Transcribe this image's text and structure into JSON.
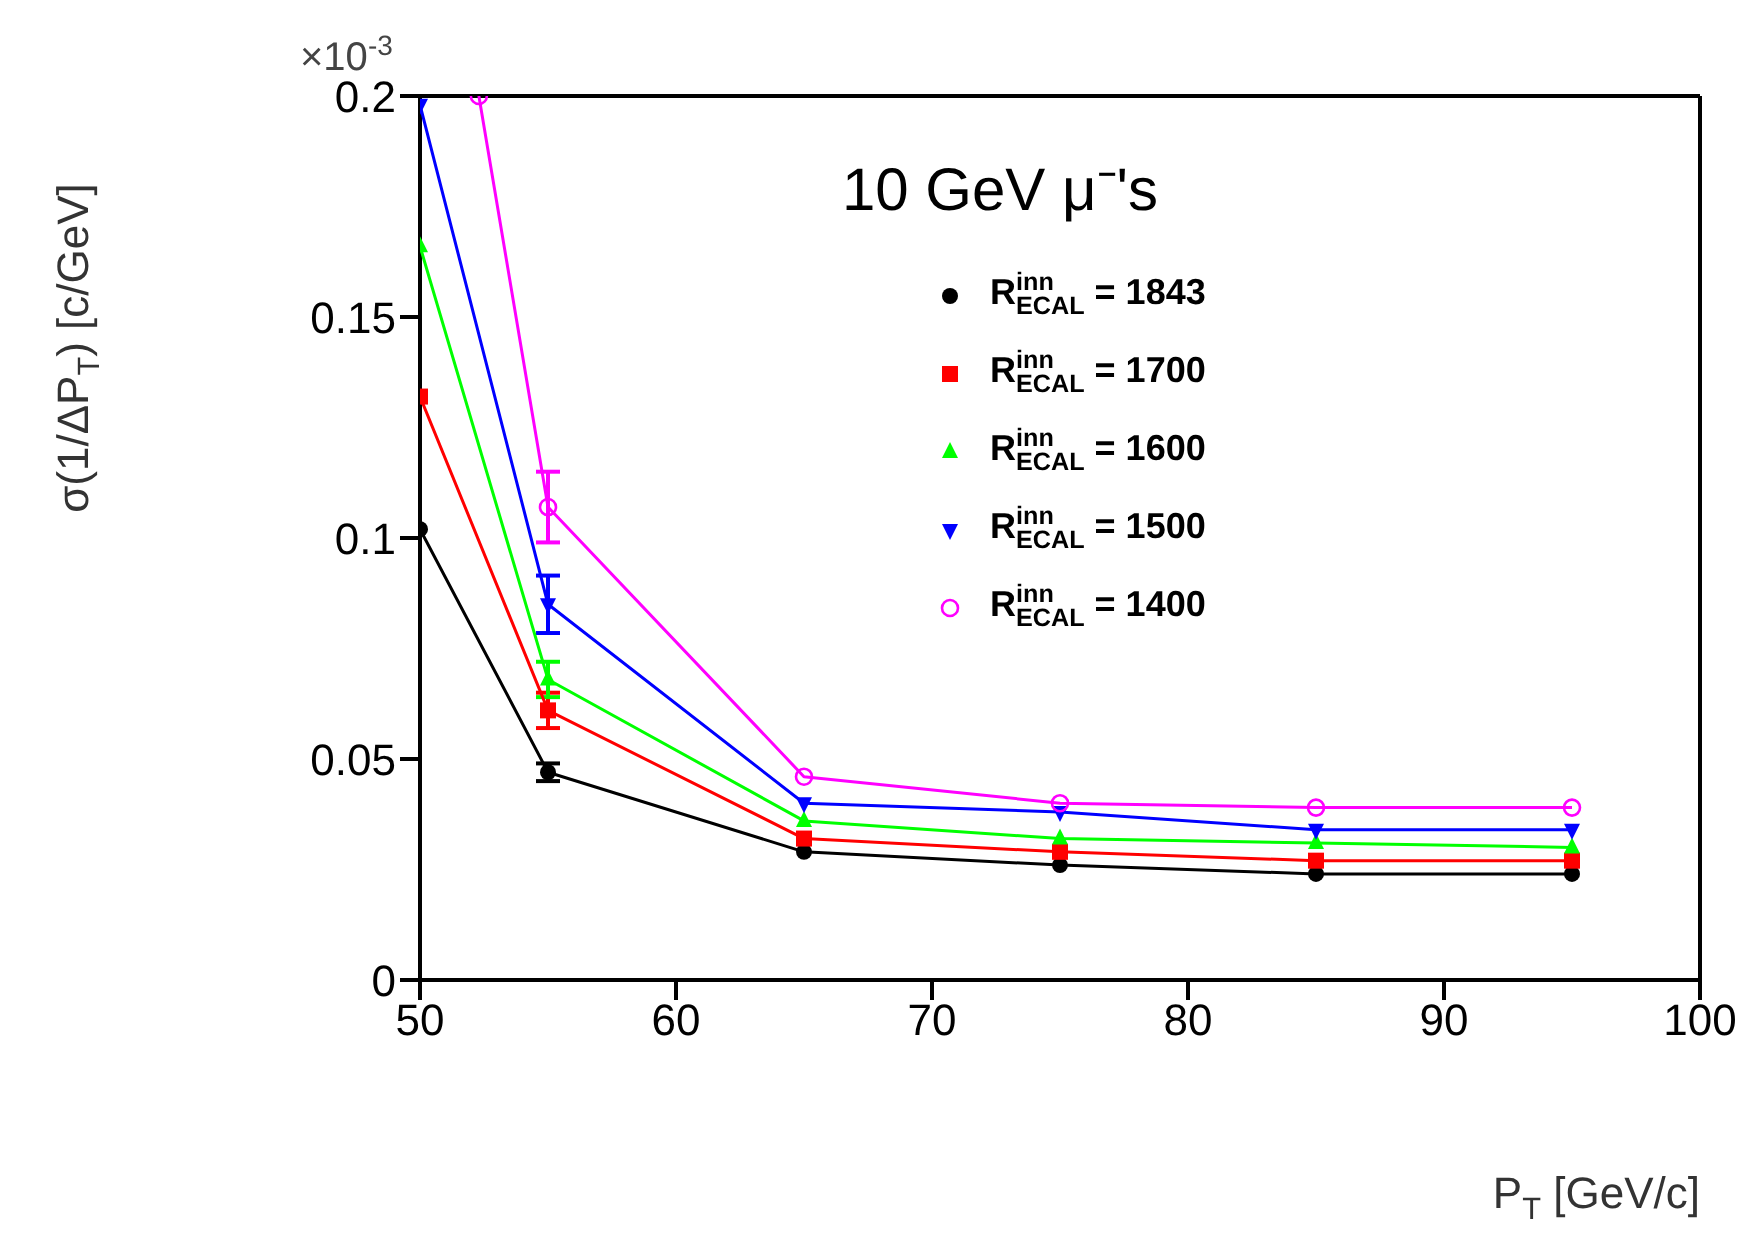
{
  "chart_data": {
    "type": "line",
    "title": "10 GeV μ⁻'s",
    "xlabel": "P$_{T}$ [GeV/c]",
    "ylabel": "σ(1/ΔP$_{T}$) [c/GeV]",
    "annotations": [
      "×10$^{-3}$"
    ],
    "xlim": [
      50,
      100
    ],
    "xticks": [
      50,
      60,
      70,
      80,
      90,
      100
    ],
    "ylim": [
      0,
      0.2
    ],
    "yticks": [
      0,
      0.05,
      0.1,
      0.15,
      0.2
    ],
    "grid": false,
    "legend": "top right",
    "series": [
      {
        "name": "R$^{inn}$$_{ECAL}$ = 1843",
        "color": "#000000",
        "marker": "circle",
        "x": [
          50,
          55,
          65,
          75,
          85,
          95
        ],
        "values": [
          0.102,
          0.047,
          0.029,
          0.026,
          0.024,
          0.024
        ],
        "errors": [
          null,
          0.002,
          null,
          null,
          null,
          null
        ]
      },
      {
        "name": "R$^{inn}$$_{ECAL}$ = 1700",
        "color": "#ff0000",
        "marker": "square",
        "x": [
          50,
          55,
          65,
          75,
          85,
          95
        ],
        "values": [
          0.132,
          0.061,
          0.032,
          0.029,
          0.027,
          0.027
        ],
        "errors": [
          null,
          0.004,
          null,
          null,
          null,
          null
        ]
      },
      {
        "name": "R$^{inn}$$_{ECAL}$ = 1600",
        "color": "#00ff00",
        "marker": "triangle",
        "x": [
          50,
          55,
          65,
          75,
          85,
          95
        ],
        "values": [
          0.166,
          0.068,
          0.036,
          0.032,
          0.031,
          0.03
        ],
        "errors": [
          null,
          0.004,
          null,
          null,
          null,
          null
        ]
      },
      {
        "name": "R$^{inn}$$_{ECAL}$ = 1500",
        "color": "#0000ff",
        "marker": "triangle-down",
        "x": [
          50,
          55,
          65,
          75,
          85,
          95
        ],
        "values": [
          0.198,
          0.085,
          0.04,
          0.038,
          0.034,
          0.034
        ],
        "errors": [
          null,
          0.0065,
          null,
          null,
          null,
          null
        ]
      },
      {
        "name": "R$^{inn}$$_{ECAL}$ = 1400",
        "color": "#ff00ff",
        "marker": "circle-open",
        "x": [
          52.3,
          55,
          65,
          75,
          85,
          95
        ],
        "values": [
          0.2,
          0.107,
          0.046,
          0.04,
          0.039,
          0.039
        ],
        "errors": [
          null,
          0.008,
          null,
          null,
          null,
          null
        ]
      }
    ]
  }
}
